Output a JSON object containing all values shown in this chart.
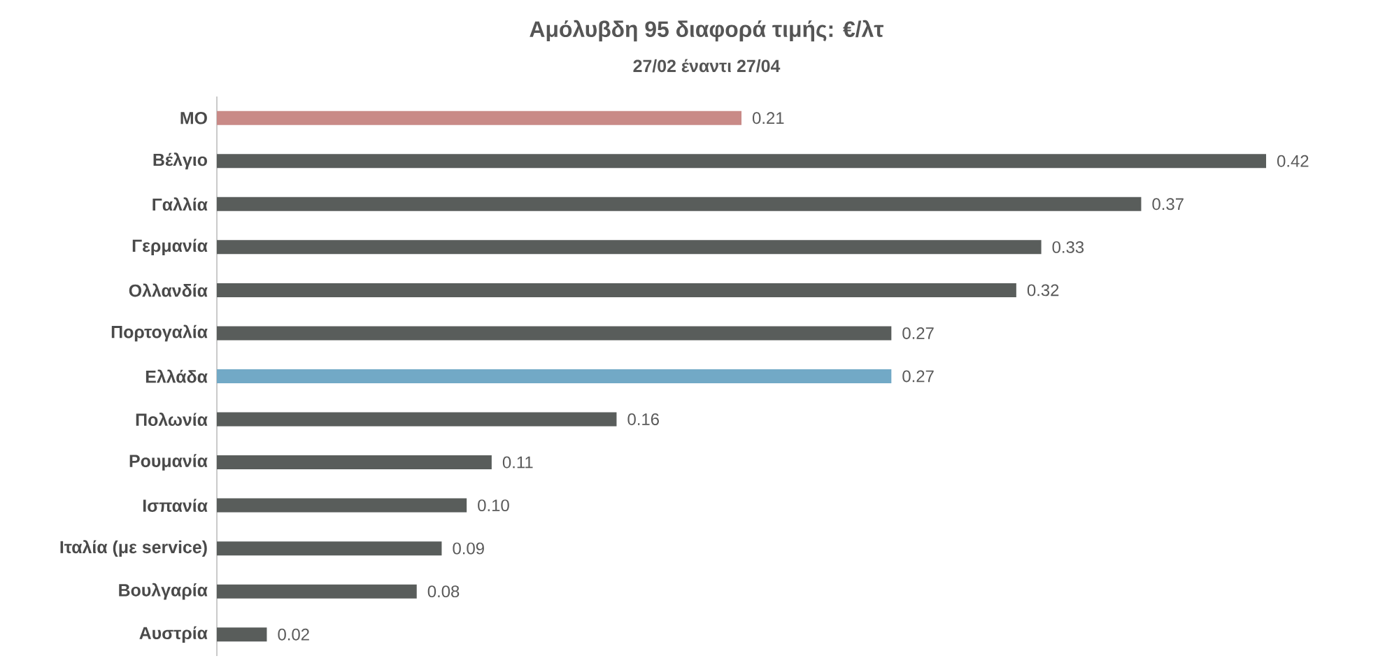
{
  "chart_data": {
    "type": "bar",
    "orientation": "horizontal",
    "title": "Αμόλυβδη 95 διαφορά τιμής: €/λτ",
    "subtitle": "27/02 έναντι 27/04",
    "categories": [
      "ΜΟ",
      "Βέλγιο",
      "Γαλλία",
      "Γερμανία",
      "Ολλανδία",
      "Πορτογαλία",
      "Ελλάδα",
      "Πολωνία",
      "Ρουμανία",
      "Ισπανία",
      "Ιταλία (με service)",
      "Βουλγαρία",
      "Αυστρία"
    ],
    "values": [
      0.21,
      0.42,
      0.37,
      0.33,
      0.32,
      0.27,
      0.27,
      0.16,
      0.11,
      0.1,
      0.09,
      0.08,
      0.02
    ],
    "value_labels": [
      "0.21",
      "0.42",
      "0.37",
      "0.33",
      "0.32",
      "0.27",
      "0.27",
      "0.16",
      "0.11",
      "0.10",
      "0.09",
      "0.08",
      "0.02"
    ],
    "colors": [
      "#c98a87",
      "#595d5b",
      "#595d5b",
      "#595d5b",
      "#595d5b",
      "#595d5b",
      "#72a9c6",
      "#595d5b",
      "#595d5b",
      "#595d5b",
      "#595d5b",
      "#595d5b",
      "#595d5b"
    ],
    "tick_labels": "y"
  }
}
